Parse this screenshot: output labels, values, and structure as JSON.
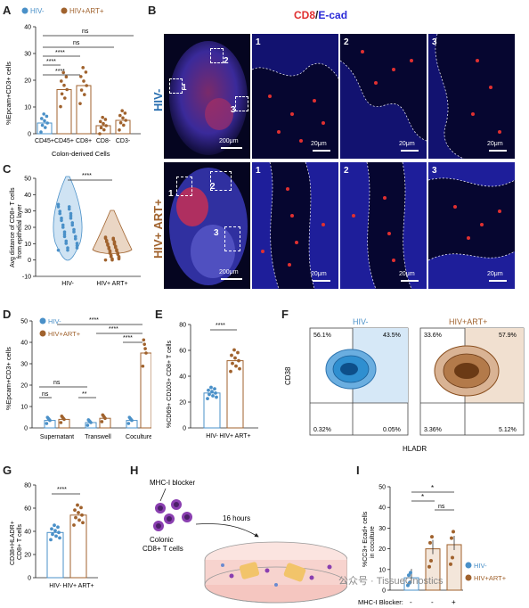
{
  "panels": {
    "A": {
      "label": "A",
      "legend": [
        "HIV-",
        "HIV+ART+"
      ],
      "ylabel": "%Epcam+CD3+ cells",
      "xlabel": "Colon-derived Cells",
      "sig": [
        "ns",
        "ns",
        "****",
        "****",
        "****"
      ]
    },
    "B": {
      "label": "B",
      "title_cd8": "CD8",
      "title_sep": "/",
      "title_ecad": "E-cad",
      "row1": "HIV-",
      "row2": "HIV+ ART+",
      "scale_main": "200μm",
      "scale_inset": "20μm",
      "insets": [
        "1",
        "2",
        "3"
      ]
    },
    "C": {
      "label": "C",
      "ylabel_1": "Avg distance of CD8+ T cells",
      "ylabel_2": "from epithelial layer",
      "sig": "****"
    },
    "D": {
      "label": "D",
      "legend": [
        "HIV-",
        "HIV+ART+"
      ],
      "ylabel": "%Epcam+CD3+ cells",
      "sig": [
        "ns",
        "ns",
        "**",
        "****",
        "****",
        "****"
      ]
    },
    "E": {
      "label": "E",
      "ylabel": "%CD69+ CD103+ CD8+ T cells",
      "sig": "****"
    },
    "F": {
      "label": "F",
      "plots": [
        {
          "title": "HIV-",
          "q": [
            "56.1%",
            "43.5%",
            "0.32%",
            "0.05%"
          ]
        },
        {
          "title": "HIV+ART+",
          "q": [
            "33.6%",
            "57.9%",
            "3.36%",
            "5.12%"
          ]
        }
      ],
      "ylabel": "CD38",
      "xlabel": "HLADR",
      "xticks": [
        "0",
        "10³",
        "10⁴",
        "10⁵",
        "10⁶"
      ],
      "yticks": [
        "-10³",
        "0",
        "10³",
        "10⁴",
        "10⁵",
        "10⁶"
      ]
    },
    "G": {
      "label": "G",
      "ylabel_1": "CD38+HLADR+",
      "ylabel_2": "CD8+ T cells",
      "sig": "****"
    },
    "H": {
      "label": "H",
      "blocker": "MHC-I blocker",
      "cells_1": "Colonic",
      "cells_2": "CD8+ T cells",
      "time": "16 hours"
    },
    "I": {
      "label": "I",
      "ylabel_1": "%CC3+ Ecad+ cells",
      "ylabel_2": "in coculture",
      "legend": [
        "HIV-",
        "HIV+ART+"
      ],
      "blocker_label": "MHC-I Blocker:",
      "blocker_vals": [
        "-",
        "-",
        "+"
      ],
      "sig": [
        "*",
        "*",
        "ns"
      ]
    }
  },
  "colors": {
    "hiv_neg": "#4a90c8",
    "hiv_pos": "#a0622d",
    "micro_bg": "#0a0a3a",
    "cd8": "#e03030",
    "ecad": "#3a3aff"
  },
  "watermark": "公众号 · TissueGnostics",
  "chart_data": [
    {
      "type": "bar",
      "panel": "A",
      "categories": [
        "CD45+",
        "CD45+",
        "CD8+",
        "CD8-",
        "CD3-"
      ],
      "values": [
        4,
        16.5,
        18,
        3,
        5
      ],
      "ylim": [
        0,
        40
      ],
      "yticks": [
        0,
        10,
        20,
        30,
        40
      ],
      "series_by_bar": [
        "HIV-",
        "HIV+ART+",
        "HIV+ART+",
        "HIV+ART+",
        "HIV+ART+"
      ]
    },
    {
      "type": "scatter",
      "panel": "C",
      "categories": [
        "HIV-",
        "HIV+ ART+"
      ],
      "medians": [
        20,
        7
      ],
      "ylim": [
        -10,
        50
      ],
      "yticks": [
        -10,
        0,
        10,
        20,
        30,
        40,
        50
      ]
    },
    {
      "type": "bar",
      "panel": "D",
      "categories": [
        "Supernatant",
        "Transwell",
        "Coculture"
      ],
      "series": [
        {
          "name": "HIV-",
          "values": [
            3.5,
            2.5,
            3.5
          ]
        },
        {
          "name": "HIV+ART+",
          "values": [
            4,
            4.5,
            35
          ]
        }
      ],
      "ylim": [
        0,
        50
      ],
      "yticks": [
        0,
        10,
        20,
        30,
        40,
        50
      ]
    },
    {
      "type": "bar",
      "panel": "E",
      "categories": [
        "HIV-",
        "HIV+ ART+"
      ],
      "values": [
        27,
        52
      ],
      "ylim": [
        0,
        80
      ],
      "yticks": [
        0,
        20,
        40,
        60,
        80
      ]
    },
    {
      "type": "bar",
      "panel": "G",
      "categories": [
        "HIV-",
        "HIV+ ART+"
      ],
      "values": [
        39,
        54
      ],
      "ylim": [
        0,
        80
      ],
      "yticks": [
        0,
        20,
        40,
        60,
        80
      ]
    },
    {
      "type": "bar",
      "panel": "I",
      "categories": [
        "HIV-",
        "HIV+ART+",
        "HIV+ART+"
      ],
      "values": [
        6,
        20,
        22
      ],
      "ylim": [
        0,
        50
      ],
      "yticks": [
        0,
        10,
        20,
        30,
        40,
        50
      ]
    }
  ]
}
